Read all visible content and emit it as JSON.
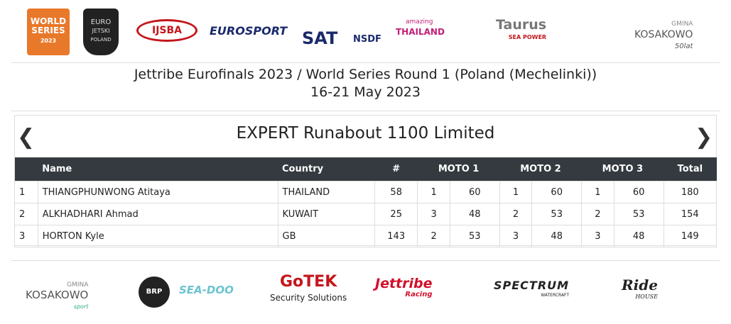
{
  "header_logos": {
    "world_series": [
      "WORLD",
      "SERIES",
      "2023"
    ],
    "euro_jetski": [
      "EURO",
      "JETSKI",
      "POLAND"
    ],
    "ijsba": "IJSBA",
    "eurosport": "EUROSPORT",
    "sat": "SAT",
    "nsdf": "NSDF",
    "thailand": [
      "amazing",
      "THAILAND"
    ],
    "taurus": [
      "Taurus",
      "SEA POWER"
    ],
    "kosakowo": [
      "GMINA",
      "KOSAKOWO",
      "50lat"
    ]
  },
  "event": {
    "title": "Jettribe Eurofinals 2023 / World Series Round 1 (Poland (Mechelinki))",
    "dates": "16-21 May 2023"
  },
  "results": {
    "class_title": "EXPERT Runabout 1100 Limited",
    "columns": [
      "Name",
      "Country",
      "#",
      "MOTO 1",
      "MOTO 2",
      "MOTO 3",
      "Total"
    ],
    "rows": [
      [
        1,
        "THIANGPHUNWONG Atitaya",
        "THAILAND",
        58,
        1,
        60,
        1,
        60,
        1,
        60,
        180
      ],
      [
        2,
        "ALKHADHARI Ahmad",
        "KUWAIT",
        25,
        3,
        48,
        2,
        53,
        2,
        53,
        154
      ],
      [
        3,
        "HORTON Kyle",
        "GB",
        143,
        2,
        53,
        3,
        48,
        3,
        48,
        149
      ]
    ]
  },
  "footer_logos": {
    "kosakowo": [
      "GMINA",
      "KOSAKOWO",
      "sport"
    ],
    "brp": "BRP",
    "seadoo": "SEA-DOO",
    "gotek": [
      "GoTEK",
      "Security Solutions"
    ],
    "jettribe": [
      "Jettribe",
      "Racing"
    ],
    "spectrum": [
      "SPECTRUM",
      "WATERCRAFT"
    ],
    "ride": [
      "Ride",
      "HOUSE"
    ]
  }
}
